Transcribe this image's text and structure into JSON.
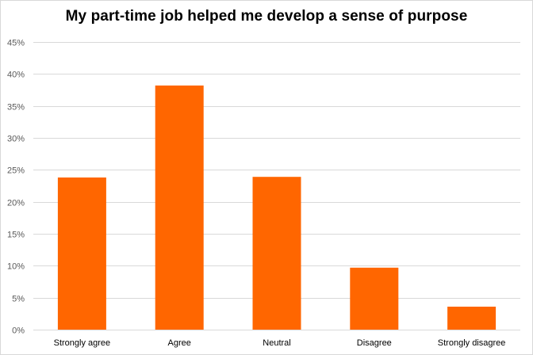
{
  "chart_data": {
    "type": "bar",
    "title": "My part-time  job helped me develop a sense of purpose",
    "xlabel": "",
    "ylabel": "",
    "categories": [
      "Strongly agree",
      "Agree",
      "Neutral",
      "Disagree",
      "Strongly disagree"
    ],
    "values": [
      23.8,
      38.2,
      23.9,
      9.7,
      3.6
    ],
    "value_format": "percent",
    "ylim": [
      0,
      45
    ],
    "yticks": [
      0,
      5,
      10,
      15,
      20,
      25,
      30,
      35,
      40,
      45
    ],
    "ytick_labels": [
      "0%",
      "5%",
      "10%",
      "15%",
      "20%",
      "25%",
      "30%",
      "35%",
      "40%",
      "45%"
    ],
    "grid": true,
    "legend": "none",
    "bar_color": "#FF6600",
    "grid_color": "#D9D9D9"
  }
}
